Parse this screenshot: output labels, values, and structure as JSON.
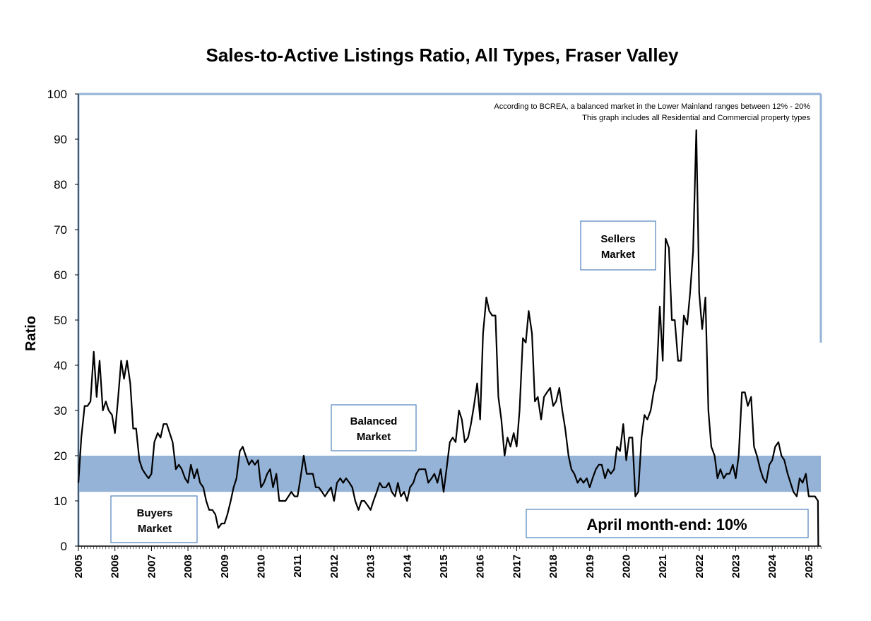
{
  "chart_data": {
    "type": "line",
    "title": "Sales-to-Active Listings Ratio, All Types, Fraser Valley",
    "xlabel": "",
    "ylabel": "Ratio",
    "xlim": [
      2005,
      2025.33
    ],
    "ylim": [
      0,
      100
    ],
    "yticks": [
      0,
      10,
      20,
      30,
      40,
      50,
      60,
      70,
      80,
      90,
      100
    ],
    "xticks": [
      "2005",
      "2006",
      "2007",
      "2008",
      "2009",
      "2010",
      "2011",
      "2012",
      "2013",
      "2014",
      "2015",
      "2016",
      "2017",
      "2018",
      "2019",
      "2020",
      "2021",
      "2022",
      "2023",
      "2024",
      "2025"
    ],
    "grid": false,
    "balanced_band": [
      12,
      20
    ],
    "notes": [
      "According to BCREA, a balanced market in the Lower Mainland ranges between 12% - 20%",
      "This graph includes all Residential and Commercial property types"
    ],
    "annotations": {
      "sellers": [
        "Sellers",
        "Market"
      ],
      "balanced": [
        "Balanced",
        "Market"
      ],
      "buyers": [
        "Buyers",
        "Market"
      ],
      "month_end": "April month-end: 10%"
    },
    "series": [
      {
        "points": [
          [
            2005.0,
            14
          ],
          [
            2005.08,
            24
          ],
          [
            2005.17,
            31
          ],
          [
            2005.25,
            31
          ],
          [
            2005.33,
            32
          ],
          [
            2005.42,
            43
          ],
          [
            2005.5,
            33
          ],
          [
            2005.58,
            41
          ],
          [
            2005.67,
            30
          ],
          [
            2005.75,
            32
          ],
          [
            2005.83,
            30
          ],
          [
            2005.92,
            29
          ],
          [
            2006.0,
            25
          ],
          [
            2006.08,
            32
          ],
          [
            2006.17,
            41
          ],
          [
            2006.25,
            37
          ],
          [
            2006.33,
            41
          ],
          [
            2006.42,
            36
          ],
          [
            2006.5,
            26
          ],
          [
            2006.58,
            26
          ],
          [
            2006.67,
            19
          ],
          [
            2006.75,
            17
          ],
          [
            2006.83,
            16
          ],
          [
            2006.92,
            15
          ],
          [
            2007.0,
            16
          ],
          [
            2007.08,
            23
          ],
          [
            2007.17,
            25
          ],
          [
            2007.25,
            24
          ],
          [
            2007.33,
            27
          ],
          [
            2007.42,
            27
          ],
          [
            2007.5,
            25
          ],
          [
            2007.58,
            23
          ],
          [
            2007.67,
            17
          ],
          [
            2007.75,
            18
          ],
          [
            2007.83,
            17
          ],
          [
            2007.92,
            15
          ],
          [
            2008.0,
            14
          ],
          [
            2008.08,
            18
          ],
          [
            2008.17,
            15
          ],
          [
            2008.25,
            17
          ],
          [
            2008.33,
            14
          ],
          [
            2008.42,
            13
          ],
          [
            2008.5,
            10
          ],
          [
            2008.58,
            8
          ],
          [
            2008.67,
            8
          ],
          [
            2008.75,
            7
          ],
          [
            2008.83,
            4
          ],
          [
            2008.92,
            5
          ],
          [
            2009.0,
            5
          ],
          [
            2009.08,
            7
          ],
          [
            2009.17,
            10
          ],
          [
            2009.25,
            13
          ],
          [
            2009.33,
            15
          ],
          [
            2009.42,
            21
          ],
          [
            2009.5,
            22
          ],
          [
            2009.58,
            20
          ],
          [
            2009.67,
            18
          ],
          [
            2009.75,
            19
          ],
          [
            2009.83,
            18
          ],
          [
            2009.92,
            19
          ],
          [
            2010.0,
            13
          ],
          [
            2010.08,
            14
          ],
          [
            2010.17,
            16
          ],
          [
            2010.25,
            17
          ],
          [
            2010.33,
            13
          ],
          [
            2010.42,
            16
          ],
          [
            2010.5,
            10
          ],
          [
            2010.58,
            10
          ],
          [
            2010.67,
            10
          ],
          [
            2010.75,
            11
          ],
          [
            2010.83,
            12
          ],
          [
            2010.92,
            11
          ],
          [
            2011.0,
            11
          ],
          [
            2011.08,
            15
          ],
          [
            2011.17,
            20
          ],
          [
            2011.25,
            16
          ],
          [
            2011.33,
            16
          ],
          [
            2011.42,
            16
          ],
          [
            2011.5,
            13
          ],
          [
            2011.58,
            13
          ],
          [
            2011.67,
            12
          ],
          [
            2011.75,
            11
          ],
          [
            2011.83,
            12
          ],
          [
            2011.92,
            13
          ],
          [
            2012.0,
            10
          ],
          [
            2012.08,
            14
          ],
          [
            2012.17,
            15
          ],
          [
            2012.25,
            14
          ],
          [
            2012.33,
            15
          ],
          [
            2012.42,
            14
          ],
          [
            2012.5,
            13
          ],
          [
            2012.58,
            10
          ],
          [
            2012.67,
            8
          ],
          [
            2012.75,
            10
          ],
          [
            2012.83,
            10
          ],
          [
            2012.92,
            9
          ],
          [
            2013.0,
            8
          ],
          [
            2013.08,
            10
          ],
          [
            2013.17,
            12
          ],
          [
            2013.25,
            14
          ],
          [
            2013.33,
            13
          ],
          [
            2013.42,
            13
          ],
          [
            2013.5,
            14
          ],
          [
            2013.58,
            12
          ],
          [
            2013.67,
            11
          ],
          [
            2013.75,
            14
          ],
          [
            2013.83,
            11
          ],
          [
            2013.92,
            12
          ],
          [
            2014.0,
            10
          ],
          [
            2014.08,
            13
          ],
          [
            2014.17,
            14
          ],
          [
            2014.25,
            16
          ],
          [
            2014.33,
            17
          ],
          [
            2014.42,
            17
          ],
          [
            2014.5,
            17
          ],
          [
            2014.58,
            14
          ],
          [
            2014.67,
            15
          ],
          [
            2014.75,
            16
          ],
          [
            2014.83,
            14
          ],
          [
            2014.92,
            17
          ],
          [
            2015.0,
            12
          ],
          [
            2015.08,
            17
          ],
          [
            2015.17,
            23
          ],
          [
            2015.25,
            24
          ],
          [
            2015.33,
            23
          ],
          [
            2015.42,
            30
          ],
          [
            2015.5,
            28
          ],
          [
            2015.58,
            23
          ],
          [
            2015.67,
            24
          ],
          [
            2015.75,
            27
          ],
          [
            2015.83,
            31
          ],
          [
            2015.92,
            36
          ],
          [
            2016.0,
            28
          ],
          [
            2016.08,
            47
          ],
          [
            2016.17,
            55
          ],
          [
            2016.25,
            52
          ],
          [
            2016.33,
            51
          ],
          [
            2016.42,
            51
          ],
          [
            2016.5,
            33
          ],
          [
            2016.58,
            28
          ],
          [
            2016.67,
            20
          ],
          [
            2016.75,
            24
          ],
          [
            2016.83,
            22
          ],
          [
            2016.92,
            25
          ],
          [
            2017.0,
            22
          ],
          [
            2017.08,
            30
          ],
          [
            2017.17,
            46
          ],
          [
            2017.25,
            45
          ],
          [
            2017.33,
            52
          ],
          [
            2017.42,
            47
          ],
          [
            2017.5,
            32
          ],
          [
            2017.58,
            33
          ],
          [
            2017.67,
            28
          ],
          [
            2017.75,
            33
          ],
          [
            2017.83,
            34
          ],
          [
            2017.92,
            35
          ],
          [
            2018.0,
            31
          ],
          [
            2018.08,
            32
          ],
          [
            2018.17,
            35
          ],
          [
            2018.25,
            30
          ],
          [
            2018.33,
            26
          ],
          [
            2018.42,
            20
          ],
          [
            2018.5,
            17
          ],
          [
            2018.58,
            16
          ],
          [
            2018.67,
            14
          ],
          [
            2018.75,
            15
          ],
          [
            2018.83,
            14
          ],
          [
            2018.92,
            15
          ],
          [
            2019.0,
            13
          ],
          [
            2019.08,
            15
          ],
          [
            2019.17,
            17
          ],
          [
            2019.25,
            18
          ],
          [
            2019.33,
            18
          ],
          [
            2019.42,
            15
          ],
          [
            2019.5,
            17
          ],
          [
            2019.58,
            16
          ],
          [
            2019.67,
            17
          ],
          [
            2019.75,
            22
          ],
          [
            2019.83,
            21
          ],
          [
            2019.92,
            27
          ],
          [
            2020.0,
            19
          ],
          [
            2020.08,
            24
          ],
          [
            2020.17,
            24
          ],
          [
            2020.25,
            11
          ],
          [
            2020.33,
            12
          ],
          [
            2020.42,
            24
          ],
          [
            2020.5,
            29
          ],
          [
            2020.58,
            28
          ],
          [
            2020.67,
            30
          ],
          [
            2020.75,
            34
          ],
          [
            2020.83,
            37
          ],
          [
            2020.92,
            53
          ],
          [
            2021.0,
            41
          ],
          [
            2021.08,
            68
          ],
          [
            2021.17,
            66
          ],
          [
            2021.25,
            50
          ],
          [
            2021.33,
            50
          ],
          [
            2021.42,
            41
          ],
          [
            2021.5,
            41
          ],
          [
            2021.58,
            51
          ],
          [
            2021.67,
            49
          ],
          [
            2021.75,
            56
          ],
          [
            2021.83,
            65
          ],
          [
            2021.92,
            92
          ],
          [
            2022.0,
            56
          ],
          [
            2022.08,
            48
          ],
          [
            2022.17,
            55
          ],
          [
            2022.25,
            30
          ],
          [
            2022.33,
            22
          ],
          [
            2022.42,
            20
          ],
          [
            2022.5,
            15
          ],
          [
            2022.58,
            17
          ],
          [
            2022.67,
            15
          ],
          [
            2022.75,
            16
          ],
          [
            2022.83,
            16
          ],
          [
            2022.92,
            18
          ],
          [
            2023.0,
            15
          ],
          [
            2023.08,
            20
          ],
          [
            2023.17,
            34
          ],
          [
            2023.25,
            34
          ],
          [
            2023.33,
            31
          ],
          [
            2023.42,
            33
          ],
          [
            2023.5,
            22
          ],
          [
            2023.58,
            20
          ],
          [
            2023.67,
            17
          ],
          [
            2023.75,
            15
          ],
          [
            2023.83,
            14
          ],
          [
            2023.92,
            18
          ],
          [
            2024.0,
            19
          ],
          [
            2024.08,
            22
          ],
          [
            2024.17,
            23
          ],
          [
            2024.25,
            20
          ],
          [
            2024.33,
            19
          ],
          [
            2024.42,
            16
          ],
          [
            2024.5,
            14
          ],
          [
            2024.58,
            12
          ],
          [
            2024.67,
            11
          ],
          [
            2024.75,
            15
          ],
          [
            2024.83,
            14
          ],
          [
            2024.92,
            16
          ],
          [
            2025.0,
            11
          ],
          [
            2025.08,
            11
          ],
          [
            2025.17,
            11
          ],
          [
            2025.25,
            10
          ],
          [
            2025.26,
            0
          ]
        ]
      }
    ]
  }
}
